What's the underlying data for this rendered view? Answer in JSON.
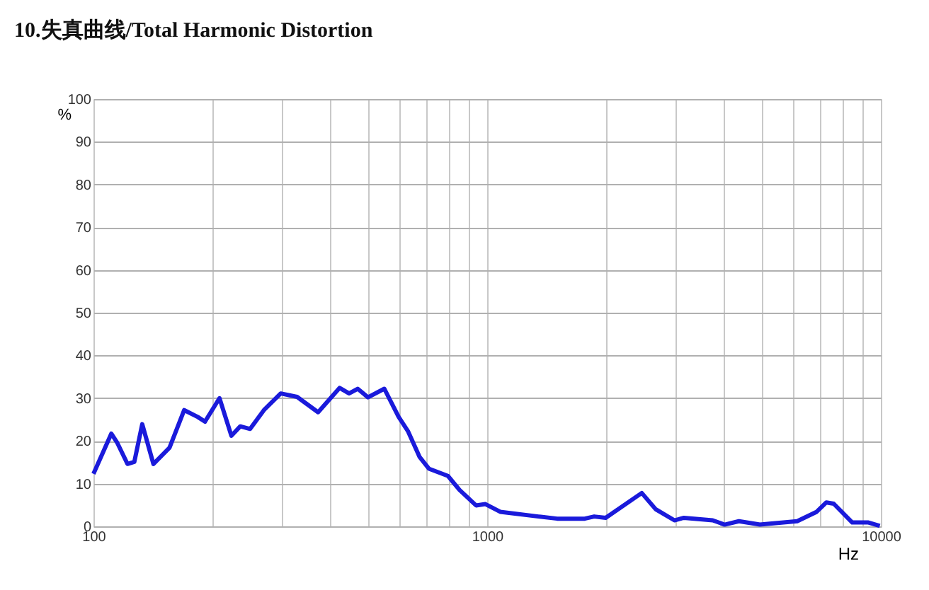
{
  "chart_data": {
    "type": "line",
    "title": "10.失真曲线/Total Harmonic Distortion",
    "xlabel": "Hz",
    "ylabel": "%",
    "log": "x",
    "grid": true,
    "legend": false,
    "marker": "none",
    "line_style": "solid",
    "xlim": [
      100,
      10000
    ],
    "ylim": [
      0,
      100
    ],
    "xticks": [
      100,
      {
        "value": 200,
        "label": null
      },
      {
        "value": 300,
        "label": null
      },
      {
        "value": 400,
        "label": null
      },
      {
        "value": 500,
        "label": null
      },
      {
        "value": 600,
        "label": null
      },
      {
        "value": 700,
        "label": null
      },
      {
        "value": 800,
        "label": null
      },
      {
        "value": 900,
        "label": null
      },
      1000,
      {
        "value": 2000,
        "label": null
      },
      {
        "value": 3000,
        "label": null
      },
      {
        "value": 4000,
        "label": null
      },
      {
        "value": 5000,
        "label": null
      },
      {
        "value": 6000,
        "label": null
      },
      {
        "value": 7000,
        "label": null
      },
      {
        "value": 8000,
        "label": null
      },
      {
        "value": 9000,
        "label": null
      },
      10000
    ],
    "yticks": [
      0,
      10,
      20,
      30,
      40,
      50,
      60,
      70,
      80,
      90,
      100
    ],
    "series": [
      {
        "color": "#1a1adb",
        "x": [
          100,
          111,
          115,
          122,
          127,
          133,
          142,
          156,
          170,
          184,
          192,
          209,
          224,
          236,
          250,
          271,
          299,
          329,
          372,
          422,
          446,
          469,
          498,
          548,
          596,
          629,
          674,
          711,
          795,
          851,
          937,
          990,
          1079,
          1350,
          1505,
          1770,
          1870,
          2000,
          2470,
          2680,
          2990,
          3160,
          3740,
          4010,
          4360,
          4930,
          6130,
          6870,
          7270,
          7590,
          8460,
          9300,
          9940
        ],
        "values": [
          12.3,
          21.7,
          19.5,
          14.6,
          15.1,
          23.9,
          14.6,
          18.4,
          27.2,
          25.6,
          24.5,
          30.0,
          21.2,
          23.4,
          22.8,
          27.2,
          31.1,
          30.3,
          26.7,
          32.4,
          31.1,
          32.2,
          30.2,
          32.2,
          25.6,
          22.3,
          16.2,
          13.5,
          11.8,
          8.5,
          4.9,
          5.2,
          3.4,
          2.3,
          1.8,
          1.8,
          2.3,
          2.0,
          7.8,
          4.0,
          1.4,
          2.0,
          1.4,
          0.4,
          1.2,
          0.4,
          1.2,
          3.4,
          5.6,
          5.3,
          0.9,
          0.9,
          0.1
        ]
      }
    ]
  }
}
